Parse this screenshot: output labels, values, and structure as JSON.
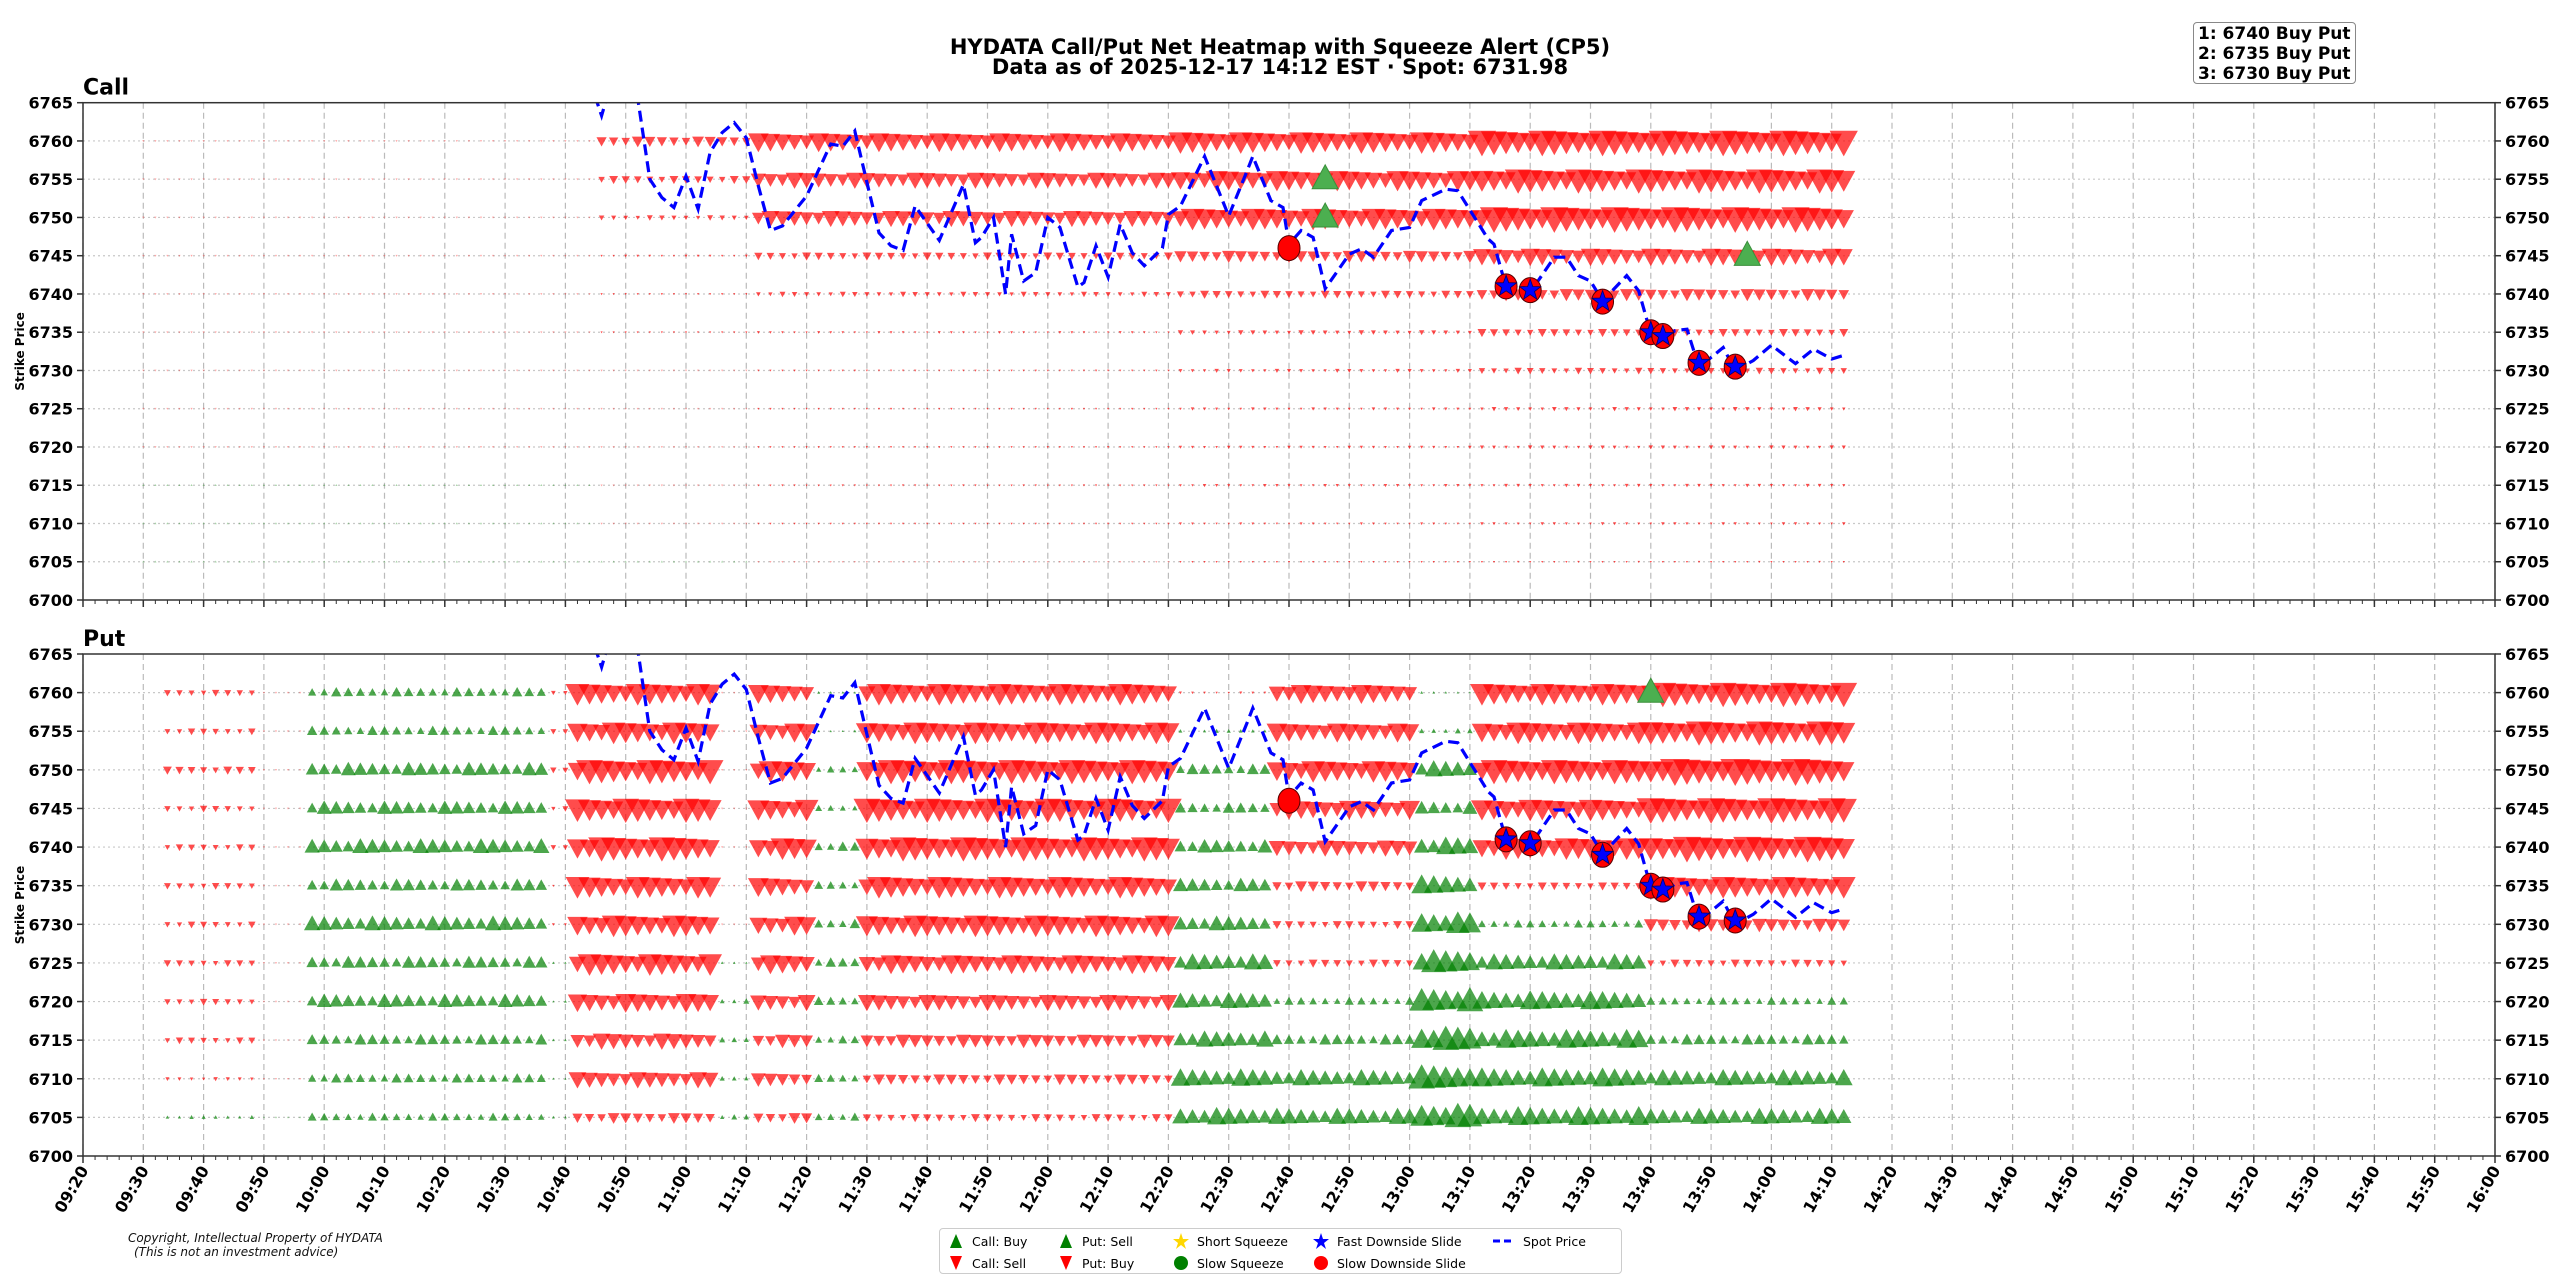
{
  "title": {
    "line1": "HYDATA Call/Put Net Heatmap with Squeeze Alert (CP5)",
    "line2": "Data as of 2025-12-17 14:12 EST · Spot: 6731.98"
  },
  "alert_box": {
    "lines": [
      "1: 6740 Buy Put",
      "2: 6735 Buy Put",
      "3: 6730 Buy Put"
    ]
  },
  "copyright": {
    "line1": "Copyright, Intellectual Property of HYDATA",
    "line2": "(This is not an investment advice)"
  },
  "legend": {
    "items": [
      {
        "label": "Call: Buy",
        "symbol": "triangle-up",
        "color": "#008000"
      },
      {
        "label": "Put: Sell",
        "symbol": "triangle-up",
        "color": "#008000"
      },
      {
        "label": "Short Squeeze",
        "symbol": "star",
        "color": "#ffd700"
      },
      {
        "label": "Fast Downside Slide",
        "symbol": "star",
        "color": "#0000ff"
      },
      {
        "label": "Spot Price",
        "symbol": "dashed-line",
        "color": "#0000ff"
      },
      {
        "label": "Call: Sell",
        "symbol": "triangle-down",
        "color": "#ff0000"
      },
      {
        "label": "Put: Buy",
        "symbol": "triangle-down",
        "color": "#ff0000"
      },
      {
        "label": "Slow Squeeze",
        "symbol": "circle",
        "color": "#008000"
      },
      {
        "label": "Slow Downside Slide",
        "symbol": "circle",
        "color": "#ff0000"
      }
    ]
  },
  "chart_data": {
    "type": "heatmap",
    "title": "HYDATA Call/Put Net Heatmap with Squeeze Alert (CP5)",
    "ylabel": "Strike Price",
    "ylim": [
      6700,
      6765
    ],
    "xlim": [
      "09:20",
      "16:00"
    ],
    "y_ticks": [
      6700,
      6705,
      6710,
      6715,
      6720,
      6725,
      6730,
      6735,
      6740,
      6745,
      6750,
      6755,
      6760,
      6765
    ],
    "x_ticks": [
      "09:20",
      "09:30",
      "09:40",
      "09:50",
      "10:00",
      "10:10",
      "10:20",
      "10:30",
      "10:40",
      "10:50",
      "11:00",
      "11:10",
      "11:20",
      "11:30",
      "11:40",
      "11:50",
      "12:00",
      "12:10",
      "12:20",
      "12:30",
      "12:40",
      "12:50",
      "13:00",
      "13:10",
      "13:20",
      "13:30",
      "13:40",
      "13:50",
      "14:00",
      "14:10",
      "14:20",
      "14:30",
      "14:40",
      "14:50",
      "15:00",
      "15:10",
      "15:20",
      "15:30",
      "15:40",
      "15:50",
      "16:00"
    ],
    "grid": true,
    "legend_position": "bottom",
    "colors": {
      "positive": "#008000",
      "negative": "#ff0000",
      "spot": "#0000ff"
    },
    "sample_interval_min": 2,
    "strikes": [
      6760,
      6755,
      6750,
      6745,
      6740,
      6735,
      6730,
      6725,
      6720,
      6715,
      6710,
      6705
    ],
    "panels": [
      {
        "name": "Call",
        "blocks": [
          [
            "09:30",
            "10:44"
          ],
          [
            "10:46",
            "11:10"
          ],
          [
            "11:12",
            "12:20"
          ],
          [
            "12:22",
            "13:10"
          ],
          [
            "13:12",
            "14:12"
          ]
        ],
        "net_values": [
          [
            -0.5,
            -4,
            -7,
            -8,
            -9.5
          ],
          [
            -0.5,
            -3,
            -6,
            -7.5,
            -9
          ],
          [
            -0.4,
            -2,
            -6,
            -8,
            -9.5
          ],
          [
            -0.4,
            -1,
            -3,
            -4.5,
            -6.5
          ],
          [
            -0.4,
            -0.8,
            -2,
            -3,
            -4.5
          ],
          [
            -0.3,
            -0.6,
            -1,
            -1.8,
            -3
          ],
          [
            -0.3,
            -0.5,
            -0.8,
            -1.5,
            -2.5
          ],
          [
            -0.3,
            -0.4,
            -0.8,
            -1.2,
            -1.6
          ],
          [
            -0.2,
            -0.4,
            -0.8,
            -1.2,
            -1.5
          ],
          [
            0.2,
            -0.3,
            -0.8,
            -1.2,
            -1.3
          ],
          [
            0.1,
            -0.3,
            -0.6,
            -1,
            -1.2
          ],
          [
            0.1,
            0.1,
            -0.4,
            -0.6,
            -0.8
          ]
        ],
        "signals": [
          {
            "type": "call-buy",
            "time": "12:46",
            "strike": 6755
          },
          {
            "type": "call-buy",
            "time": "12:46",
            "strike": 6750
          },
          {
            "type": "call-buy",
            "time": "13:56",
            "strike": 6745
          }
        ]
      },
      {
        "name": "Put",
        "blocks": [
          [
            "09:34",
            "09:48"
          ],
          [
            "09:50",
            "09:56"
          ],
          [
            "09:58",
            "10:36"
          ],
          [
            "10:38",
            "10:40"
          ],
          [
            "10:42",
            "11:04"
          ],
          [
            "11:06",
            "11:10"
          ],
          [
            "11:12",
            "11:20"
          ],
          [
            "11:22",
            "11:28"
          ],
          [
            "11:30",
            "12:20"
          ],
          [
            "12:22",
            "12:36"
          ],
          [
            "12:38",
            "13:00"
          ],
          [
            "13:02",
            "13:10"
          ],
          [
            "13:12",
            "13:38"
          ],
          [
            "13:40",
            "14:12"
          ]
        ],
        "net_values": [
          [
            -2.5,
            -0.5,
            3.5,
            -2,
            -8,
            -0.5,
            -7,
            1,
            -8,
            -1,
            -7,
            1,
            -8,
            -9
          ],
          [
            -2.5,
            -0.5,
            3.5,
            -2,
            -8,
            -0.5,
            -7,
            1,
            -8,
            1.5,
            -7,
            2,
            -8,
            -9
          ],
          [
            -3,
            -0.5,
            5,
            -2.5,
            -9,
            -0.5,
            -8,
            2.5,
            -9,
            4,
            -8,
            6,
            -9,
            -10
          ],
          [
            -2.5,
            -0.5,
            5,
            -2,
            -9,
            -0.5,
            -8,
            2.5,
            -9,
            4,
            -7,
            5,
            -8,
            -9.5
          ],
          [
            -2.5,
            -0.5,
            5.5,
            -2,
            -9,
            -0.5,
            -8,
            3.5,
            -9,
            5,
            -6,
            6.5,
            -8,
            -9.5
          ],
          [
            -2.5,
            -0.5,
            4.5,
            -1,
            -8,
            -0.5,
            -7,
            3,
            -8,
            5,
            -4,
            7,
            -3,
            -8
          ],
          [
            -2.5,
            -0.5,
            5.5,
            -1,
            -8,
            -0.5,
            -7,
            3.5,
            -8,
            5.5,
            -3,
            8,
            3,
            -5
          ],
          [
            -2.5,
            -0.5,
            4.5,
            1,
            -8,
            1,
            -7,
            3.5,
            -7,
            6,
            -3,
            8.5,
            6,
            -3
          ],
          [
            -2.5,
            -0.5,
            5,
            1,
            -7,
            2,
            -6,
            3.5,
            -6,
            6,
            3,
            9,
            7,
            3
          ],
          [
            -2.5,
            -0.5,
            4,
            1,
            -6,
            2,
            -5,
            3,
            -5,
            6,
            4,
            9,
            7,
            4
          ],
          [
            -1.5,
            -0.5,
            3.5,
            1,
            -6,
            2,
            -5,
            3,
            -4,
            6.5,
            6,
            9,
            7,
            6
          ],
          [
            1.5,
            0.3,
            3,
            1,
            -4,
            2,
            -4,
            3,
            -3,
            6.5,
            6,
            9,
            7,
            6
          ]
        ],
        "signals": [
          {
            "type": "put-sell",
            "time": "13:40",
            "strike": 6760
          }
        ]
      }
    ],
    "alerts": [
      {
        "type": "slow-downside-slide",
        "time": "12:40",
        "strike": 6746
      },
      {
        "type": "fast-downside-slide",
        "time": "13:16",
        "strike": 6741
      },
      {
        "type": "fast-downside-slide",
        "time": "13:20",
        "strike": 6740.5
      },
      {
        "type": "fast-downside-slide",
        "time": "13:32",
        "strike": 6739
      },
      {
        "type": "fast-downside-slide",
        "time": "13:40",
        "strike": 6735
      },
      {
        "type": "fast-downside-slide",
        "time": "13:42",
        "strike": 6734.5
      },
      {
        "type": "fast-downside-slide",
        "time": "13:48",
        "strike": 6731
      },
      {
        "type": "fast-downside-slide",
        "time": "13:54",
        "strike": 6730.5
      }
    ],
    "spot": [
      [
        "10:44",
        6768
      ],
      [
        "10:46",
        6763.3
      ],
      [
        "10:47",
        6766
      ],
      [
        "10:52",
        6765.5
      ],
      [
        "10:54",
        6755
      ],
      [
        "10:56",
        6752.6
      ],
      [
        "10:58",
        6751.3
      ],
      [
        "11:00",
        6755.4
      ],
      [
        "11:02",
        6751.1
      ],
      [
        "11:04",
        6758.5
      ],
      [
        "11:06",
        6761.1
      ],
      [
        "11:08",
        6762.4
      ],
      [
        "11:10",
        6760.4
      ],
      [
        "11:12",
        6754.1
      ],
      [
        "11:14",
        6748.3
      ],
      [
        "11:16",
        6748.9
      ],
      [
        "11:20",
        6752.8
      ],
      [
        "11:24",
        6759.6
      ],
      [
        "11:26",
        6759.3
      ],
      [
        "11:28",
        6761.3
      ],
      [
        "11:30",
        6754.6
      ],
      [
        "11:32",
        6748
      ],
      [
        "11:34",
        6746.3
      ],
      [
        "11:36",
        6745.7
      ],
      [
        "11:38",
        6751.5
      ],
      [
        "11:42",
        6747
      ],
      [
        "11:46",
        6754.3
      ],
      [
        "11:48",
        6746.7
      ],
      [
        "11:49",
        6747.4
      ],
      [
        "11:51",
        6750
      ],
      [
        "11:53",
        6740
      ],
      [
        "11:54",
        6747.8
      ],
      [
        "11:56",
        6741.7
      ],
      [
        "11:58",
        6742.8
      ],
      [
        "12:00",
        6750
      ],
      [
        "12:02",
        6748.7
      ],
      [
        "12:05",
        6740.9
      ],
      [
        "12:06",
        6741.5
      ],
      [
        "12:08",
        6746.3
      ],
      [
        "12:10",
        6742.2
      ],
      [
        "12:12",
        6749.1
      ],
      [
        "12:14",
        6745.4
      ],
      [
        "12:16",
        6743.7
      ],
      [
        "12:19",
        6746
      ],
      [
        "12:20",
        6750.4
      ],
      [
        "12:22",
        6751.5
      ],
      [
        "12:26",
        6758
      ],
      [
        "12:30",
        6750.2
      ],
      [
        "12:33",
        6756
      ],
      [
        "12:34",
        6758
      ],
      [
        "12:37",
        6752.2
      ],
      [
        "12:39",
        6751.3
      ],
      [
        "12:40",
        6746.5
      ],
      [
        "12:42",
        6748.3
      ],
      [
        "12:44",
        6747.4
      ],
      [
        "12:46",
        6740.7
      ],
      [
        "12:50",
        6745.2
      ],
      [
        "12:52",
        6745.9
      ],
      [
        "12:54",
        6744.8
      ],
      [
        "12:57",
        6748.3
      ],
      [
        "13:00",
        6748.7
      ],
      [
        "13:02",
        6752.2
      ],
      [
        "13:06",
        6753.7
      ],
      [
        "13:08",
        6753.5
      ],
      [
        "13:13",
        6747.2
      ],
      [
        "13:14",
        6746.5
      ],
      [
        "13:16",
        6740.9
      ],
      [
        "13:20",
        6740.2
      ],
      [
        "13:24",
        6744.8
      ],
      [
        "13:26",
        6744.8
      ],
      [
        "13:28",
        6742.4
      ],
      [
        "13:30",
        6741.7
      ],
      [
        "13:32",
        6739.1
      ],
      [
        "13:36",
        6742.4
      ],
      [
        "13:38",
        6740.4
      ],
      [
        "13:40",
        6734.8
      ],
      [
        "13:42",
        6734.1
      ],
      [
        "13:44",
        6735.2
      ],
      [
        "13:46",
        6735.4
      ],
      [
        "13:48",
        6730.4
      ],
      [
        "13:52",
        6733
      ],
      [
        "13:54",
        6730
      ],
      [
        "13:57",
        6731.3
      ],
      [
        "14:00",
        6733.3
      ],
      [
        "14:04",
        6730.9
      ],
      [
        "14:07",
        6732.8
      ],
      [
        "14:10",
        6731.5
      ],
      [
        "14:12",
        6731.98
      ]
    ]
  }
}
